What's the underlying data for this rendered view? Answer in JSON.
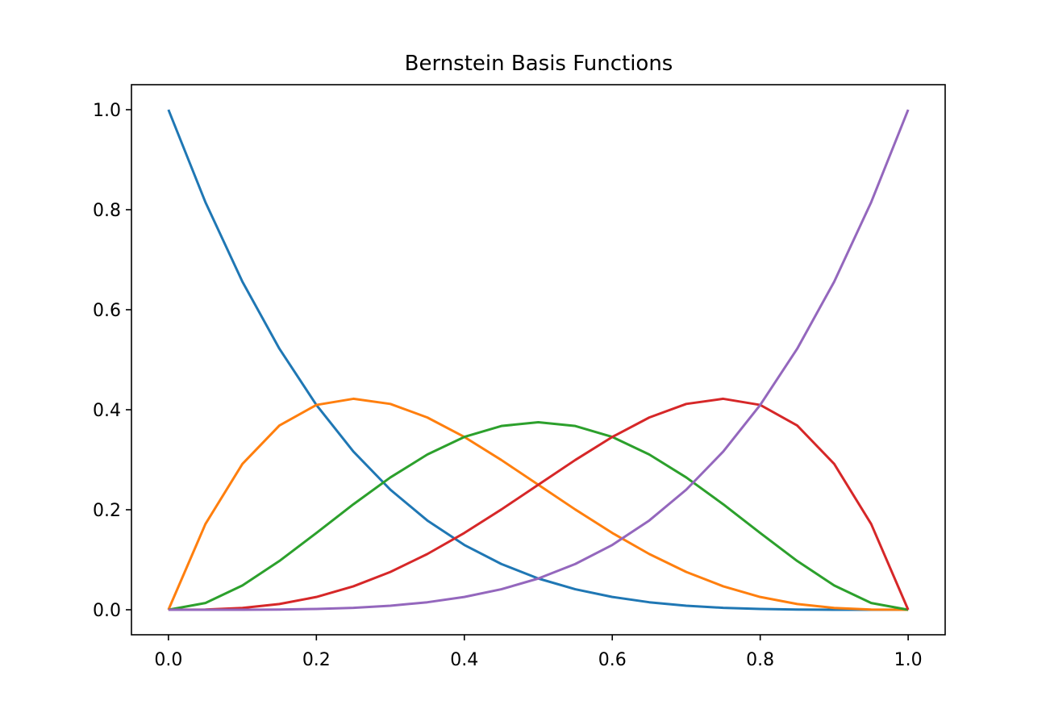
{
  "chart_data": {
    "type": "line",
    "title": "Bernstein Basis Functions",
    "xlabel": "",
    "ylabel": "",
    "xlim": [
      -0.05,
      1.05
    ],
    "ylim": [
      -0.05,
      1.05
    ],
    "xticks": [
      0.0,
      0.2,
      0.4,
      0.6,
      0.8,
      1.0
    ],
    "xtick_labels": [
      "0.0",
      "0.2",
      "0.4",
      "0.6",
      "0.8",
      "1.0"
    ],
    "yticks": [
      0.0,
      0.2,
      0.4,
      0.6,
      0.8,
      1.0
    ],
    "ytick_labels": [
      "0.0",
      "0.2",
      "0.4",
      "0.6",
      "0.8",
      "1.0"
    ],
    "grid": false,
    "legend": "none",
    "x": [
      0.0,
      0.05,
      0.1,
      0.15,
      0.2,
      0.25,
      0.3,
      0.35,
      0.4,
      0.45,
      0.5,
      0.55,
      0.6,
      0.65,
      0.7,
      0.75,
      0.8,
      0.85,
      0.9,
      0.95,
      1.0
    ],
    "series": [
      {
        "color": "#1f77b4",
        "values": [
          1.0,
          0.815,
          0.6561,
          0.522,
          0.4096,
          0.3164,
          0.2401,
          0.1785,
          0.1296,
          0.0915,
          0.0625,
          0.041,
          0.0256,
          0.015,
          0.0081,
          0.0039,
          0.0016,
          0.0005,
          0.0001,
          0.0,
          0.0
        ]
      },
      {
        "color": "#ff7f0e",
        "values": [
          0.0,
          0.1715,
          0.2916,
          0.3685,
          0.4096,
          0.4219,
          0.4116,
          0.3845,
          0.3456,
          0.2995,
          0.25,
          0.2005,
          0.1536,
          0.1115,
          0.0756,
          0.0469,
          0.0256,
          0.0115,
          0.0036,
          0.0005,
          0.0
        ]
      },
      {
        "color": "#2ca02c",
        "values": [
          0.0,
          0.0135,
          0.0486,
          0.0975,
          0.1536,
          0.2109,
          0.2646,
          0.3105,
          0.3456,
          0.3675,
          0.375,
          0.3675,
          0.3456,
          0.3105,
          0.2646,
          0.2109,
          0.1536,
          0.0975,
          0.0486,
          0.0135,
          0.0
        ]
      },
      {
        "color": "#d62728",
        "values": [
          0.0,
          0.0005,
          0.0036,
          0.0115,
          0.0256,
          0.0469,
          0.0756,
          0.1115,
          0.1536,
          0.2005,
          0.25,
          0.2995,
          0.3456,
          0.3845,
          0.4116,
          0.4219,
          0.4096,
          0.3685,
          0.2916,
          0.1715,
          0.0
        ]
      },
      {
        "color": "#9467bd",
        "values": [
          0.0,
          0.0,
          0.0001,
          0.0005,
          0.0016,
          0.0039,
          0.0081,
          0.015,
          0.0256,
          0.041,
          0.0625,
          0.0915,
          0.1296,
          0.1785,
          0.2401,
          0.3164,
          0.4096,
          0.522,
          0.6561,
          0.815,
          1.0
        ]
      }
    ]
  }
}
